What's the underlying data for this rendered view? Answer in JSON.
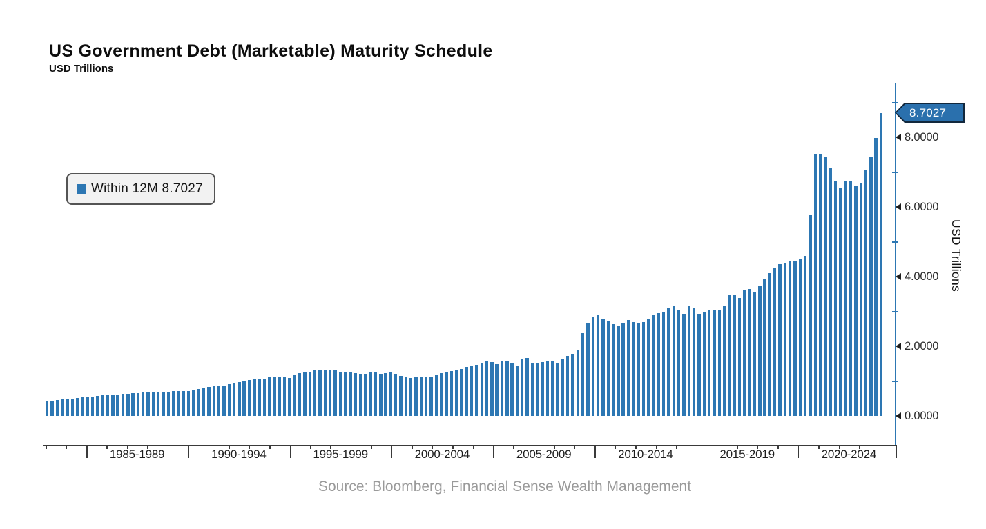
{
  "header": {
    "title": "US Government Debt (Marketable) Maturity Schedule",
    "subtitle": "USD Trillions"
  },
  "legend": {
    "label": "Within 12M 8.7027"
  },
  "callout": {
    "value": "8.7027"
  },
  "y_axis": {
    "title": "USD Trillions",
    "tick_labels": [
      "0.0000",
      "2.0000",
      "4.0000",
      "6.0000",
      "8.0000"
    ],
    "major_tick_values": [
      0,
      2,
      4,
      6,
      8
    ],
    "minor_tick_values": [
      1,
      3,
      5,
      7,
      9
    ]
  },
  "x_axis": {
    "group_labels": [
      "1985-1989",
      "1990-1994",
      "1995-1999",
      "2000-2004",
      "2005-2009",
      "2010-2014",
      "2015-2019",
      "2020-2024"
    ],
    "group_boundary_years": [
      1985,
      1990,
      1995,
      2000,
      2005,
      2010,
      2015,
      2020
    ],
    "closing_boundary_year": 2025,
    "year_tick_start": 1983,
    "year_tick_end": 2024
  },
  "source": {
    "text": "Source: Bloomberg, Financial Sense Wealth Management"
  },
  "colors": {
    "bar": "#2d77b3",
    "axis": "#2d77b3",
    "callout_fill": "#2a70ad",
    "callout_border": "#12283d",
    "text": "#1a1a1a",
    "muted": "#9a9a9a"
  },
  "chart_data": {
    "type": "bar",
    "title": "US Government Debt (Marketable) Maturity Schedule",
    "subtitle": "USD Trillions",
    "ylabel": "USD Trillions",
    "ylim": [
      0,
      9.6
    ],
    "grid": false,
    "legend_position": "upper-left",
    "annotation": {
      "label": "8.7027",
      "type": "last-value-flag"
    },
    "frequency": "quarterly",
    "start_period": "1983Q1",
    "end_period": "2024Q2",
    "series": [
      {
        "name": "Within 12M",
        "latest_value": 8.7027,
        "values": [
          0.42,
          0.44,
          0.46,
          0.47,
          0.49,
          0.5,
          0.52,
          0.53,
          0.55,
          0.56,
          0.58,
          0.6,
          0.61,
          0.62,
          0.62,
          0.63,
          0.64,
          0.65,
          0.66,
          0.67,
          0.67,
          0.68,
          0.69,
          0.7,
          0.7,
          0.71,
          0.71,
          0.72,
          0.71,
          0.73,
          0.77,
          0.8,
          0.84,
          0.85,
          0.85,
          0.87,
          0.92,
          0.95,
          0.98,
          1.0,
          1.02,
          1.04,
          1.05,
          1.06,
          1.1,
          1.13,
          1.12,
          1.11,
          1.08,
          1.18,
          1.22,
          1.25,
          1.26,
          1.31,
          1.33,
          1.31,
          1.32,
          1.32,
          1.25,
          1.24,
          1.26,
          1.22,
          1.2,
          1.2,
          1.25,
          1.24,
          1.21,
          1.23,
          1.25,
          1.21,
          1.15,
          1.1,
          1.08,
          1.11,
          1.12,
          1.1,
          1.12,
          1.19,
          1.23,
          1.26,
          1.28,
          1.3,
          1.35,
          1.4,
          1.43,
          1.46,
          1.53,
          1.57,
          1.55,
          1.48,
          1.59,
          1.56,
          1.5,
          1.45,
          1.64,
          1.66,
          1.52,
          1.5,
          1.54,
          1.58,
          1.58,
          1.52,
          1.64,
          1.72,
          1.79,
          1.88,
          2.37,
          2.65,
          2.83,
          2.91,
          2.8,
          2.73,
          2.63,
          2.6,
          2.65,
          2.75,
          2.7,
          2.67,
          2.69,
          2.78,
          2.9,
          2.95,
          3.0,
          3.08,
          3.16,
          3.02,
          2.93,
          3.17,
          3.11,
          2.93,
          2.98,
          3.03,
          3.02,
          3.03,
          3.16,
          3.48,
          3.46,
          3.39,
          3.61,
          3.64,
          3.55,
          3.74,
          3.95,
          4.1,
          4.25,
          4.35,
          4.4,
          4.45,
          4.45,
          4.5,
          4.6,
          5.77,
          7.53,
          7.52,
          7.45,
          7.13,
          6.76,
          6.53,
          6.74,
          6.73,
          6.61,
          6.67,
          7.06,
          7.45,
          7.98,
          8.7027
        ]
      }
    ]
  }
}
